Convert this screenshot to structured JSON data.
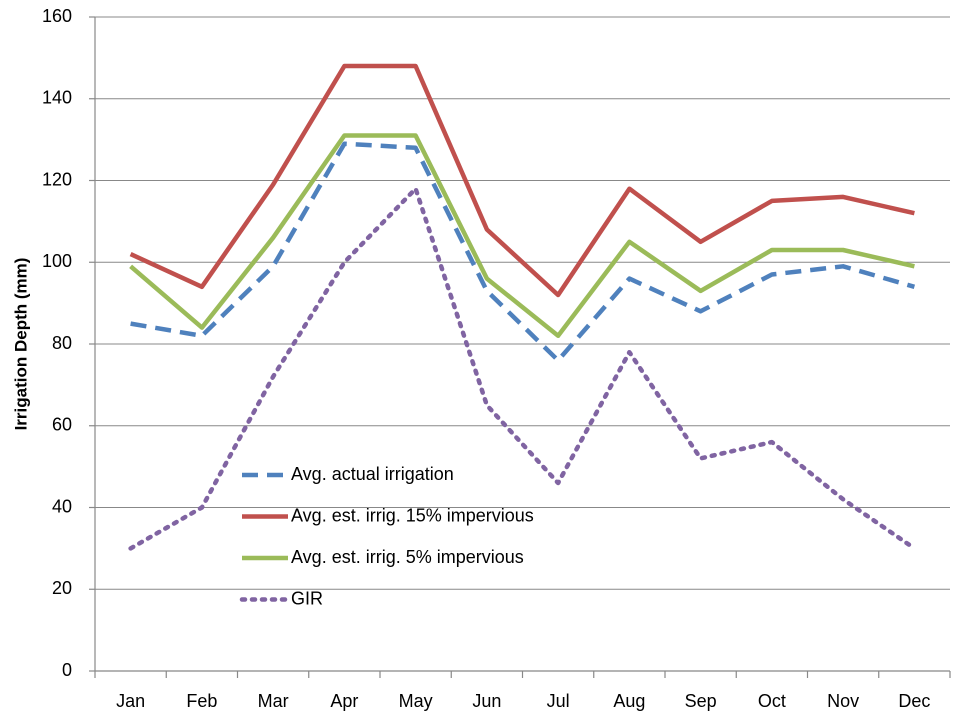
{
  "chart_data": {
    "type": "line",
    "y_label": "Irrigation Depth (mm)",
    "categories": [
      "Jan",
      "Feb",
      "Mar",
      "Apr",
      "May",
      "Jun",
      "Jul",
      "Aug",
      "Sep",
      "Oct",
      "Nov",
      "Dec"
    ],
    "series": [
      {
        "name": "Avg. actual irrigation",
        "color": "#4f81bd",
        "dash": "dashed",
        "values": [
          85,
          82,
          99,
          129,
          128,
          93,
          76,
          96,
          88,
          97,
          99,
          94
        ]
      },
      {
        "name": "Avg. est. irrig. 15% impervious",
        "color": "#c0504d",
        "dash": "solid",
        "values": [
          102,
          94,
          119,
          148,
          148,
          108,
          92,
          118,
          105,
          115,
          116,
          112
        ]
      },
      {
        "name": "Avg. est. irrig. 5% impervious",
        "color": "#9bbb59",
        "dash": "solid",
        "values": [
          99,
          84,
          106,
          131,
          131,
          96,
          82,
          105,
          93,
          103,
          103,
          99
        ]
      },
      {
        "name": "GIR",
        "color": "#8064a2",
        "dash": "dotted",
        "values": [
          30,
          40,
          72,
          100,
          118,
          65,
          46,
          78,
          52,
          56,
          42,
          30
        ]
      }
    ],
    "ylim": [
      0,
      160
    ],
    "yticks": [
      0,
      20,
      40,
      60,
      80,
      100,
      120,
      140,
      160
    ],
    "grid": true
  }
}
